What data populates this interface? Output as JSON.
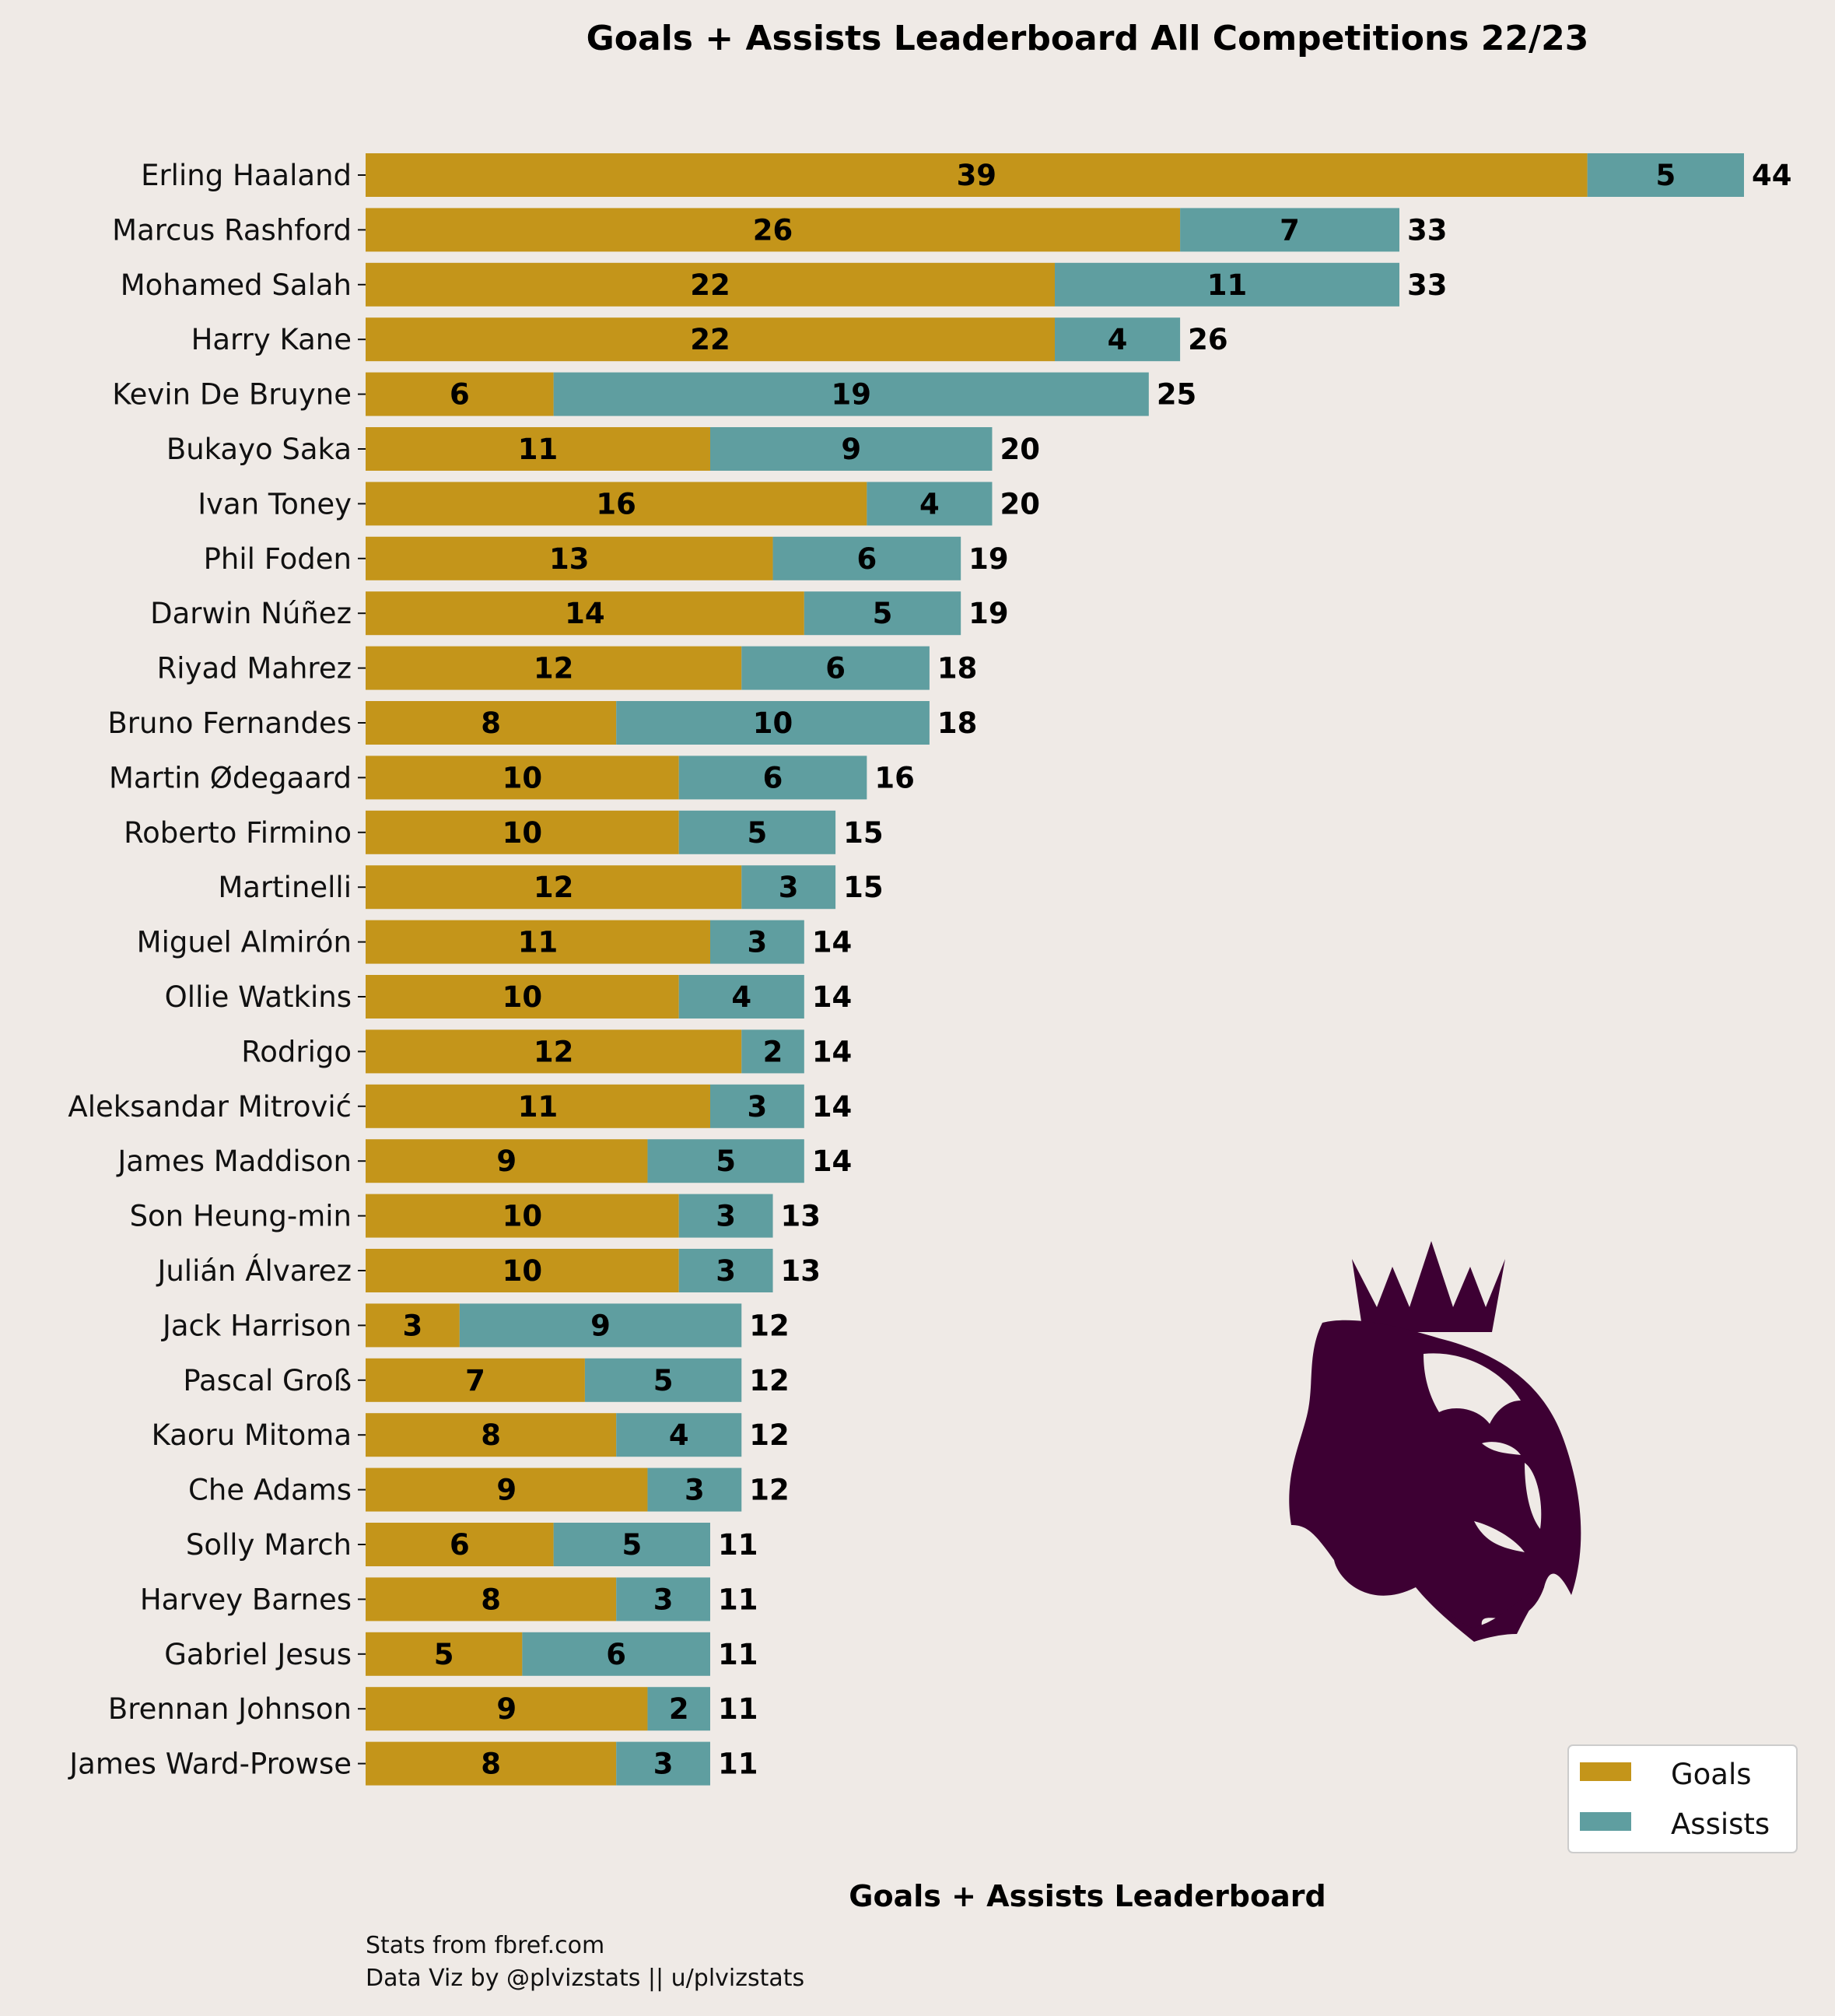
{
  "chart_data": {
    "type": "bar",
    "orientation": "horizontal",
    "stacked": true,
    "title": "Goals + Assists Leaderboard All Competitions 22/23",
    "xlabel": "Goals + Assists Leaderboard",
    "ylabel": "",
    "xlim": [
      0,
      45
    ],
    "grid": false,
    "legend_position": "bottom-right",
    "categories": [
      "Erling Haaland",
      "Marcus Rashford",
      "Mohamed Salah",
      "Harry Kane",
      "Kevin De Bruyne",
      "Bukayo Saka",
      "Ivan Toney",
      "Phil Foden",
      "Darwin Núñez",
      "Riyad Mahrez",
      "Bruno Fernandes",
      "Martin Ødegaard",
      "Roberto Firmino",
      "Martinelli",
      "Miguel Almirón",
      "Ollie Watkins",
      "Rodrigo",
      "Aleksandar Mitrović",
      "James Maddison",
      "Son Heung-min",
      "Julián Álvarez",
      "Jack Harrison",
      "Pascal Groß",
      "Kaoru Mitoma",
      "Che Adams",
      "Solly March",
      "Harvey Barnes",
      "Gabriel Jesus",
      "Brennan Johnson",
      "James Ward-Prowse"
    ],
    "series": [
      {
        "name": "Goals",
        "color": "#c4951a",
        "values": [
          39,
          26,
          22,
          22,
          6,
          11,
          16,
          13,
          14,
          12,
          8,
          10,
          10,
          12,
          11,
          10,
          12,
          11,
          9,
          10,
          10,
          3,
          7,
          8,
          9,
          6,
          8,
          5,
          9,
          8
        ]
      },
      {
        "name": "Assists",
        "color": "#5f9ea0",
        "values": [
          5,
          7,
          11,
          4,
          19,
          9,
          4,
          6,
          5,
          6,
          10,
          6,
          5,
          3,
          3,
          4,
          2,
          3,
          5,
          3,
          3,
          9,
          5,
          4,
          3,
          5,
          3,
          6,
          2,
          3
        ]
      }
    ],
    "totals": [
      44,
      33,
      33,
      26,
      25,
      20,
      20,
      19,
      19,
      18,
      18,
      16,
      15,
      15,
      14,
      14,
      14,
      14,
      14,
      13,
      13,
      12,
      12,
      12,
      12,
      11,
      11,
      11,
      11,
      11
    ]
  },
  "credits": {
    "line1": "Stats from fbref.com",
    "line2": "Data Viz by @plvizstats || u/plvizstats"
  },
  "logo": {
    "name": "premier-league-lion-logo",
    "color": "#3d0033"
  },
  "colors": {
    "background": "#efeae6",
    "legend_background": "#ffffff"
  }
}
